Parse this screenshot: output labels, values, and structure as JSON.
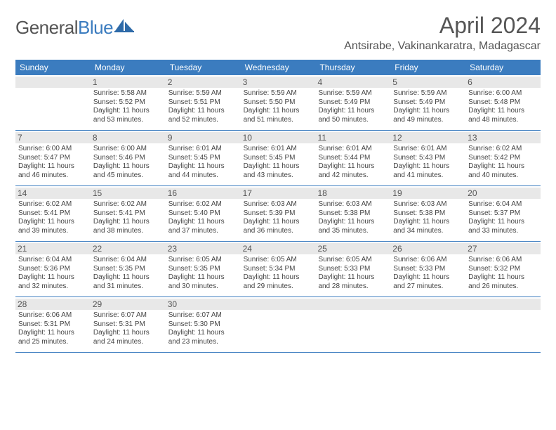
{
  "logo": {
    "textGray": "General",
    "textBlue": "Blue"
  },
  "title": "April 2024",
  "location": "Antsirabe, Vakinankaratra, Madagascar",
  "colors": {
    "accent": "#3b7cbf",
    "headerText": "#555555",
    "cellHeaderBg": "#e8e8e8",
    "bodyText": "#444444",
    "background": "#ffffff"
  },
  "weekdays": [
    "Sunday",
    "Monday",
    "Tuesday",
    "Wednesday",
    "Thursday",
    "Friday",
    "Saturday"
  ],
  "weeks": [
    [
      null,
      {
        "n": "1",
        "sr": "5:58 AM",
        "ss": "5:52 PM",
        "dl": "11 hours and 53 minutes."
      },
      {
        "n": "2",
        "sr": "5:59 AM",
        "ss": "5:51 PM",
        "dl": "11 hours and 52 minutes."
      },
      {
        "n": "3",
        "sr": "5:59 AM",
        "ss": "5:50 PM",
        "dl": "11 hours and 51 minutes."
      },
      {
        "n": "4",
        "sr": "5:59 AM",
        "ss": "5:49 PM",
        "dl": "11 hours and 50 minutes."
      },
      {
        "n": "5",
        "sr": "5:59 AM",
        "ss": "5:49 PM",
        "dl": "11 hours and 49 minutes."
      },
      {
        "n": "6",
        "sr": "6:00 AM",
        "ss": "5:48 PM",
        "dl": "11 hours and 48 minutes."
      }
    ],
    [
      {
        "n": "7",
        "sr": "6:00 AM",
        "ss": "5:47 PM",
        "dl": "11 hours and 46 minutes."
      },
      {
        "n": "8",
        "sr": "6:00 AM",
        "ss": "5:46 PM",
        "dl": "11 hours and 45 minutes."
      },
      {
        "n": "9",
        "sr": "6:01 AM",
        "ss": "5:45 PM",
        "dl": "11 hours and 44 minutes."
      },
      {
        "n": "10",
        "sr": "6:01 AM",
        "ss": "5:45 PM",
        "dl": "11 hours and 43 minutes."
      },
      {
        "n": "11",
        "sr": "6:01 AM",
        "ss": "5:44 PM",
        "dl": "11 hours and 42 minutes."
      },
      {
        "n": "12",
        "sr": "6:01 AM",
        "ss": "5:43 PM",
        "dl": "11 hours and 41 minutes."
      },
      {
        "n": "13",
        "sr": "6:02 AM",
        "ss": "5:42 PM",
        "dl": "11 hours and 40 minutes."
      }
    ],
    [
      {
        "n": "14",
        "sr": "6:02 AM",
        "ss": "5:41 PM",
        "dl": "11 hours and 39 minutes."
      },
      {
        "n": "15",
        "sr": "6:02 AM",
        "ss": "5:41 PM",
        "dl": "11 hours and 38 minutes."
      },
      {
        "n": "16",
        "sr": "6:02 AM",
        "ss": "5:40 PM",
        "dl": "11 hours and 37 minutes."
      },
      {
        "n": "17",
        "sr": "6:03 AM",
        "ss": "5:39 PM",
        "dl": "11 hours and 36 minutes."
      },
      {
        "n": "18",
        "sr": "6:03 AM",
        "ss": "5:38 PM",
        "dl": "11 hours and 35 minutes."
      },
      {
        "n": "19",
        "sr": "6:03 AM",
        "ss": "5:38 PM",
        "dl": "11 hours and 34 minutes."
      },
      {
        "n": "20",
        "sr": "6:04 AM",
        "ss": "5:37 PM",
        "dl": "11 hours and 33 minutes."
      }
    ],
    [
      {
        "n": "21",
        "sr": "6:04 AM",
        "ss": "5:36 PM",
        "dl": "11 hours and 32 minutes."
      },
      {
        "n": "22",
        "sr": "6:04 AM",
        "ss": "5:35 PM",
        "dl": "11 hours and 31 minutes."
      },
      {
        "n": "23",
        "sr": "6:05 AM",
        "ss": "5:35 PM",
        "dl": "11 hours and 30 minutes."
      },
      {
        "n": "24",
        "sr": "6:05 AM",
        "ss": "5:34 PM",
        "dl": "11 hours and 29 minutes."
      },
      {
        "n": "25",
        "sr": "6:05 AM",
        "ss": "5:33 PM",
        "dl": "11 hours and 28 minutes."
      },
      {
        "n": "26",
        "sr": "6:06 AM",
        "ss": "5:33 PM",
        "dl": "11 hours and 27 minutes."
      },
      {
        "n": "27",
        "sr": "6:06 AM",
        "ss": "5:32 PM",
        "dl": "11 hours and 26 minutes."
      }
    ],
    [
      {
        "n": "28",
        "sr": "6:06 AM",
        "ss": "5:31 PM",
        "dl": "11 hours and 25 minutes."
      },
      {
        "n": "29",
        "sr": "6:07 AM",
        "ss": "5:31 PM",
        "dl": "11 hours and 24 minutes."
      },
      {
        "n": "30",
        "sr": "6:07 AM",
        "ss": "5:30 PM",
        "dl": "11 hours and 23 minutes."
      },
      null,
      null,
      null,
      null
    ]
  ],
  "labels": {
    "sunrise": "Sunrise: ",
    "sunset": "Sunset: ",
    "daylight": "Daylight: "
  }
}
